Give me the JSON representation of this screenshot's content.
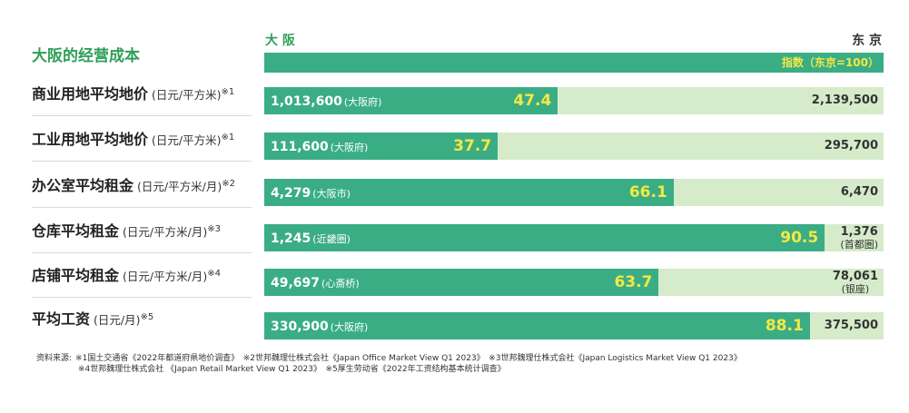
{
  "title": "大阪的经营成本",
  "header": {
    "osaka": "大 阪",
    "tokyo": "东 京",
    "index_label": "指数（东京=100）"
  },
  "colors": {
    "bar": "#3aad85",
    "track": "#d5ebca",
    "index_text": "#f4e843",
    "green_text": "#2f9f58"
  },
  "chart_data": {
    "type": "bar",
    "orientation": "horizontal",
    "xlim": [
      0,
      100
    ],
    "rows": [
      {
        "label": "商业用地平均地价",
        "unit": "(日元/平方米)",
        "note": "※1",
        "osaka": "1,013,600",
        "osaka_area": "(大阪府)",
        "index": 47.4,
        "tokyo": "2,139,500"
      },
      {
        "label": "工业用地平均地价",
        "unit": "(日元/平方米)",
        "note": "※1",
        "osaka": "111,600",
        "osaka_area": "(大阪府)",
        "index": 37.7,
        "tokyo": "295,700"
      },
      {
        "label": "办公室平均租金",
        "unit": "(日元/平方米/月)",
        "note": "※2",
        "osaka": "4,279",
        "osaka_area": "(大阪市)",
        "index": 66.1,
        "tokyo": "6,470"
      },
      {
        "label": "仓库平均租金",
        "unit": "(日元/平方米/月)",
        "note": "※3",
        "osaka": "1,245",
        "osaka_area": "(近畿圏)",
        "index": 90.5,
        "tokyo": "1,376",
        "tokyo_area": "(首都圏)"
      },
      {
        "label": "店铺平均租金",
        "unit": "(日元/平方米/月)",
        "note": "※4",
        "osaka": "49,697",
        "osaka_area": "(心斎桥)",
        "index": 63.7,
        "tokyo": "78,061",
        "tokyo_area": "(银座)"
      },
      {
        "label": "平均工资",
        "unit": "(日元/月)",
        "note": "※5",
        "osaka": "330,900",
        "osaka_area": "(大阪府)",
        "index": 88.1,
        "tokyo": "375,500"
      }
    ]
  },
  "source": {
    "prefix": "资料来源:",
    "line1": "※1国土交通省《2022年都道府県地价调查》　※2世邦魏理仕株式会社《Japan Office Market View Q1 2023》　※3世邦魏理仕株式会社《Japan Logistics Market View Q1 2023》",
    "line2": "※4世邦魏理仕株式会社 《Japan Retail Market View Q1 2023》　※5厚生劳动省《2022年工资结构基本统计调查》"
  }
}
